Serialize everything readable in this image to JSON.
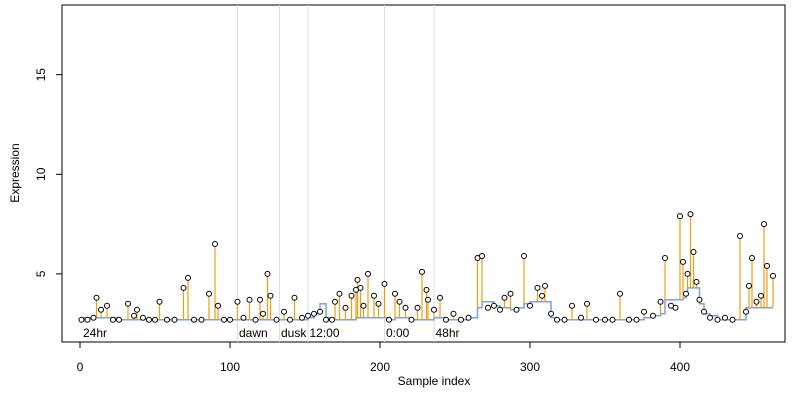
{
  "chart_data": {
    "type": "scatter",
    "x_label": "Sample index",
    "y_label": "Expression",
    "xlim": [
      -12,
      470
    ],
    "ylim": [
      1.58,
      18.5
    ],
    "xticks": [
      0,
      100,
      200,
      300,
      400
    ],
    "yticks": [
      5,
      10,
      15
    ],
    "point_color": "#000000",
    "stem_color": "#f39c12",
    "baseline_color": "#7fa3d6",
    "vline_color": "#dddddd",
    "annotation_color": "#bbbbbb",
    "vlines": [
      105,
      133,
      152,
      203,
      236
    ],
    "annotations": [
      {
        "x": 2,
        "y": 2.0,
        "label": "24hr"
      },
      {
        "x": 106,
        "y": 2.0,
        "label": "dawn"
      },
      {
        "x": 134,
        "y": 2.0,
        "label": "dusk"
      },
      {
        "x": 153,
        "y": 2.0,
        "label": "12:00"
      },
      {
        "x": 204,
        "y": 2.0,
        "label": "0:00"
      },
      {
        "x": 237,
        "y": 2.0,
        "label": "48hr"
      }
    ],
    "x": [
      1,
      5,
      9,
      11,
      14,
      18,
      22,
      26,
      32,
      36,
      38,
      42,
      46,
      50,
      53,
      58,
      63,
      69,
      72,
      76,
      81,
      86,
      90,
      92,
      96,
      100,
      105,
      109,
      113,
      117,
      120,
      122,
      125,
      127,
      131,
      136,
      140,
      143,
      148,
      152,
      156,
      160,
      164,
      168,
      170,
      173,
      177,
      181,
      184,
      185,
      187,
      189,
      192,
      196,
      199,
      203,
      206,
      210,
      213,
      217,
      221,
      225,
      228,
      231,
      232,
      236,
      240,
      244,
      249,
      254,
      259,
      265,
      268,
      272,
      276,
      280,
      283,
      287,
      291,
      296,
      300,
      305,
      308,
      310,
      314,
      318,
      323,
      328,
      334,
      338,
      344,
      350,
      355,
      360,
      366,
      371,
      376,
      382,
      387,
      390,
      394,
      397,
      400,
      402,
      404,
      405,
      407,
      409,
      411,
      413,
      416,
      420,
      425,
      430,
      435,
      440,
      444,
      446,
      448,
      451,
      454,
      456,
      458,
      462
    ],
    "values": [
      2.7,
      2.7,
      2.8,
      3.8,
      3.2,
      3.4,
      2.7,
      2.7,
      3.5,
      2.9,
      3.2,
      2.8,
      2.7,
      2.7,
      3.6,
      2.7,
      2.7,
      4.3,
      4.8,
      2.7,
      2.7,
      4.0,
      6.5,
      3.4,
      2.7,
      2.7,
      3.6,
      2.8,
      3.7,
      2.7,
      3.7,
      3.0,
      5.0,
      3.9,
      2.7,
      3.1,
      2.7,
      3.8,
      2.8,
      2.9,
      3.0,
      3.1,
      2.7,
      2.7,
      3.6,
      4.0,
      3.3,
      3.9,
      4.2,
      4.7,
      4.3,
      3.4,
      5.0,
      3.9,
      3.5,
      4.5,
      2.7,
      4.0,
      3.6,
      3.3,
      2.7,
      3.3,
      5.1,
      4.2,
      3.7,
      3.2,
      3.8,
      2.7,
      3.0,
      2.7,
      2.8,
      5.8,
      5.9,
      3.3,
      3.4,
      3.2,
      3.8,
      4.0,
      3.2,
      5.9,
      3.4,
      4.3,
      3.9,
      4.4,
      3.0,
      2.7,
      2.7,
      3.4,
      2.8,
      3.5,
      2.7,
      2.7,
      2.7,
      4.0,
      2.7,
      2.7,
      3.1,
      2.9,
      3.6,
      5.8,
      3.4,
      3.3,
      7.9,
      5.6,
      4.0,
      5.0,
      8.0,
      6.1,
      4.6,
      3.7,
      3.1,
      2.8,
      2.7,
      2.8,
      2.7,
      6.9,
      3.1,
      4.4,
      5.8,
      3.6,
      3.9,
      7.5,
      5.4,
      4.9
    ],
    "baseline": [
      2.8,
      2.8,
      2.8,
      2.8,
      2.8,
      2.8,
      2.8,
      2.7,
      2.7,
      2.7,
      2.7,
      2.7,
      2.7,
      2.7,
      2.7,
      2.7,
      2.7,
      2.7,
      2.7,
      2.7,
      2.7,
      2.7,
      2.7,
      2.7,
      2.7,
      2.7,
      2.7,
      2.7,
      2.7,
      2.7,
      2.7,
      2.7,
      2.7,
      2.7,
      2.7,
      2.7,
      2.7,
      2.7,
      2.7,
      2.8,
      3.0,
      3.5,
      2.8,
      2.7,
      2.7,
      2.7,
      2.7,
      2.7,
      2.8,
      2.8,
      2.8,
      2.8,
      2.8,
      2.8,
      2.8,
      2.8,
      2.7,
      2.8,
      2.8,
      2.8,
      2.7,
      2.7,
      2.7,
      2.7,
      2.7,
      2.8,
      2.8,
      2.7,
      2.7,
      2.7,
      2.8,
      3.3,
      3.6,
      3.6,
      3.4,
      3.3,
      3.3,
      3.2,
      3.3,
      3.5,
      3.6,
      3.6,
      3.6,
      3.6,
      2.8,
      2.7,
      2.7,
      2.7,
      2.7,
      2.7,
      2.7,
      2.7,
      2.7,
      2.7,
      2.7,
      2.7,
      2.8,
      2.9,
      3.0,
      3.7,
      3.7,
      3.7,
      3.7,
      3.8,
      4.1,
      4.3,
      4.3,
      4.3,
      4.3,
      3.5,
      3.0,
      2.9,
      2.7,
      2.7,
      2.7,
      2.7,
      3.3,
      3.3,
      3.3,
      3.3,
      3.3,
      3.3,
      3.3,
      3.3
    ]
  }
}
